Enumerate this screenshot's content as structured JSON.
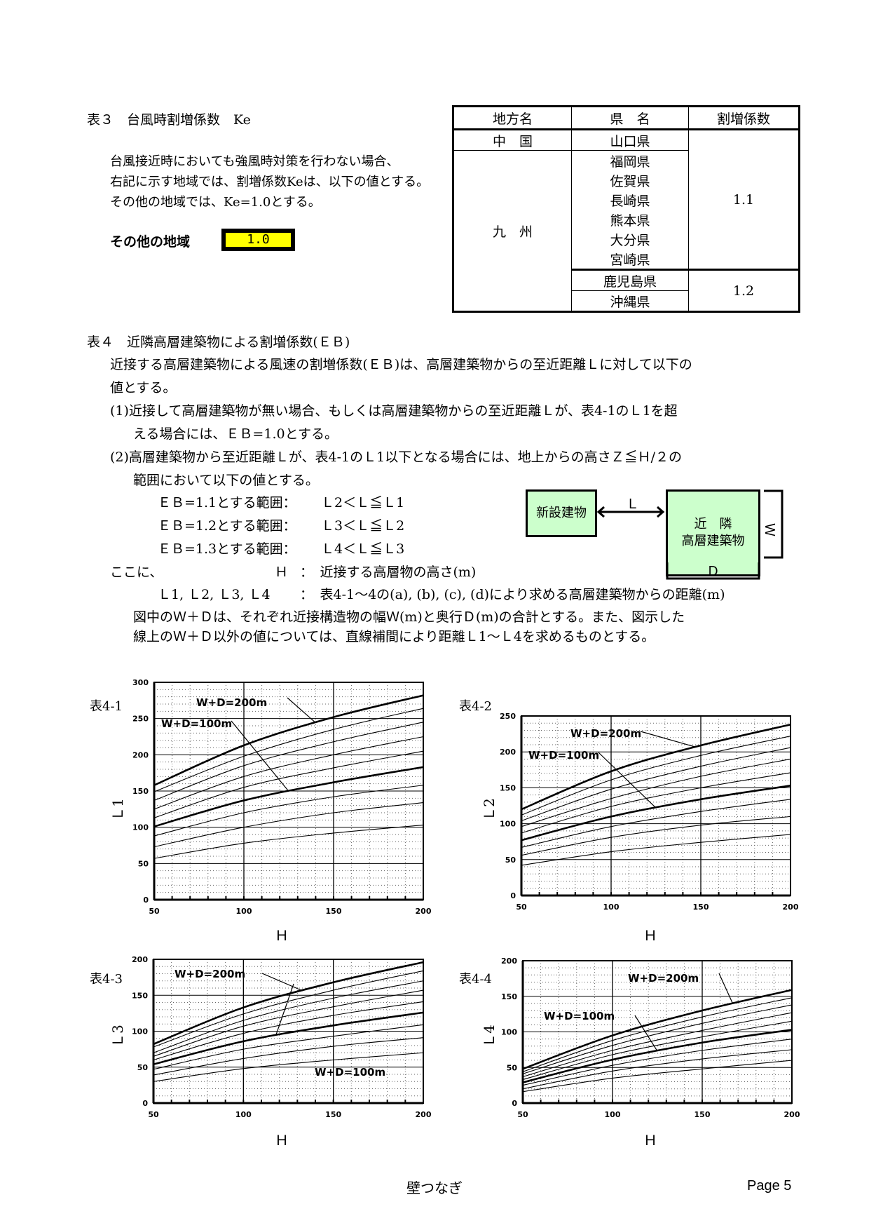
{
  "table3": {
    "title": "表３　台風時割増係数　Ke",
    "lines": [
      "台風接近時においても強風時対策を行わない場合、",
      "右記に示す地域では、割増係数Keは、以下の値とする。",
      "その他の地域では、Ke=1.0とする。"
    ],
    "other_label": "その他の地域",
    "other_value": "1.0",
    "highlight_color": "#ffff00",
    "headers": [
      "地方名",
      "県　名",
      "割増係数"
    ],
    "rows": [
      {
        "region": "中　国",
        "prefecture": "山口県"
      },
      {
        "region": "九　州",
        "prefecture": "福岡県"
      },
      {
        "prefecture": "佐賀県"
      },
      {
        "prefecture": "長崎県"
      },
      {
        "prefecture": "熊本県"
      },
      {
        "prefecture": "大分県"
      },
      {
        "prefecture": "宮崎県"
      },
      {
        "prefecture": "鹿児島県"
      },
      {
        "prefecture": "沖縄県"
      }
    ],
    "coef_a": "1.1",
    "coef_b": "1.2"
  },
  "table4": {
    "title": "表４　近隣高層建築物による割増係数(ＥＢ)",
    "p1": "近接する高層建築物による風速の割増係数(ＥＢ)は、高層建築物からの至近距離Ｌに対して以下の",
    "p1b": "値とする。",
    "c1": "(1)近接して高層建築物が無い場合、もしくは高層建築物からの至近距離Ｌが、表4-1のＬ1を超",
    "c1b": "える場合には、ＥＢ=1.0とする。",
    "c2": "(2)高層建築物から至近距離Ｌが、表4-1のＬ1以下となる場合には、地上からの高さＺ≦Ｈ/２の",
    "c2b": "範囲において以下の値とする。",
    "ranges": [
      {
        "label": "ＥＢ=1.1とする範囲：",
        "cond": "Ｌ2＜Ｌ≦Ｌ1"
      },
      {
        "label": "ＥＢ=1.2とする範囲：",
        "cond": "Ｌ3＜Ｌ≦Ｌ2"
      },
      {
        "label": "ＥＢ=1.3とする範囲：",
        "cond": "Ｌ4＜Ｌ≦Ｌ3"
      }
    ],
    "where": "ここに、",
    "h_sym": "Ｈ",
    "h_def": "：　近接する高層物の高さ(m)",
    "l_sym": "Ｌ1, Ｌ2, Ｌ3, Ｌ4",
    "l_def": "：　表4-1～4の(a), (b), (c), (d)により求める高層建築物からの距離(m)",
    "note1": "図中のＷ＋Ｄは、それぞれ近接構造物の幅Ｗ(m)と奥行Ｄ(m)の合計とする。また、図示した",
    "note2": "線上のＷ＋Ｄ以外の値については、直線補間により距離Ｌ1～Ｌ4を求めるものとする。"
  },
  "diagram": {
    "new_building": "新設建物",
    "neighbor_line1": "近　隣",
    "neighbor_line2": "高層建築物",
    "distance": "Ｌ",
    "width": "Ｗ",
    "depth": "Ｄ",
    "box_color": "#ccffcc"
  },
  "chart_data": [
    {
      "type": "line",
      "title": "表4-1",
      "xlabel": "Ｈ",
      "ylabel": "Ｌ1",
      "xlim": [
        50,
        200
      ],
      "ylim": [
        0,
        300
      ],
      "grid": true,
      "xticks": [
        50,
        100,
        150,
        200
      ],
      "yticks": [
        0,
        50,
        100,
        150,
        200,
        250,
        300
      ],
      "x": [
        50,
        100,
        150,
        200
      ],
      "series": [
        {
          "values": [
            158,
            213,
            252,
            282
          ]
        },
        {
          "values": [
            149,
            198,
            235,
            264
          ]
        },
        {
          "values": [
            137,
            185,
            218,
            245
          ]
        },
        {
          "values": [
            125,
            170,
            200,
            225
          ]
        },
        {
          "values": [
            113,
            155,
            182,
            205
          ]
        },
        {
          "values": [
            101,
            137,
            162,
            183
          ]
        },
        {
          "values": [
            88,
            120,
            142,
            158
          ]
        },
        {
          "values": [
            73,
            100,
            120,
            134
          ]
        },
        {
          "values": [
            57,
            78,
            92,
            103
          ]
        }
      ],
      "annotations": [
        "W+D=200m",
        "W+D=100m"
      ]
    },
    {
      "type": "line",
      "title": "表4-2",
      "xlabel": "Ｈ",
      "ylabel": "Ｌ2",
      "xlim": [
        50,
        200
      ],
      "ylim": [
        0,
        250
      ],
      "grid": true,
      "xticks": [
        50,
        100,
        150,
        200
      ],
      "yticks": [
        0,
        50,
        100,
        150,
        200,
        250
      ],
      "x": [
        50,
        100,
        150,
        200
      ],
      "series": [
        {
          "values": [
            120,
            173,
            209,
            238
          ]
        },
        {
          "values": [
            112,
            161,
            195,
            222
          ]
        },
        {
          "values": [
            104,
            148,
            180,
            206
          ]
        },
        {
          "values": [
            96,
            135,
            166,
            190
          ]
        },
        {
          "values": [
            87,
            124,
            150,
            171
          ]
        },
        {
          "values": [
            77,
            110,
            134,
            153
          ]
        },
        {
          "values": [
            67,
            96,
            117,
            134
          ]
        },
        {
          "values": [
            56,
            81,
            98,
            110
          ]
        },
        {
          "values": [
            42,
            61,
            74,
            85
          ]
        }
      ],
      "annotations": [
        "W+D=200m",
        "W+D=100m"
      ]
    },
    {
      "type": "line",
      "title": "表4-3",
      "xlabel": "Ｈ",
      "ylabel": "Ｌ3",
      "xlim": [
        50,
        200
      ],
      "ylim": [
        0,
        200
      ],
      "grid": true,
      "xticks": [
        50,
        100,
        150,
        200
      ],
      "yticks": [
        0,
        50,
        100,
        150,
        200
      ],
      "x": [
        50,
        100,
        150,
        200
      ],
      "series": [
        {
          "values": [
            82,
            133,
            168,
            196
          ]
        },
        {
          "values": [
            78,
            124,
            157,
            184
          ]
        },
        {
          "values": [
            70,
            115,
            146,
            170
          ]
        },
        {
          "values": [
            65,
            107,
            134,
            157
          ]
        },
        {
          "values": [
            60,
            97,
            122,
            141
          ]
        },
        {
          "values": [
            54,
            86,
            108,
            126
          ]
        },
        {
          "values": [
            47,
            75,
            93,
            109
          ]
        },
        {
          "values": [
            39,
            62,
            79,
            91
          ]
        },
        {
          "values": [
            30,
            48,
            60,
            70
          ]
        }
      ],
      "annotations": [
        "W+D=200m",
        "W+D=100m"
      ]
    },
    {
      "type": "line",
      "title": "表4-4",
      "xlabel": "Ｈ",
      "ylabel": "Ｌ4",
      "xlim": [
        50,
        200
      ],
      "ylim": [
        0,
        200
      ],
      "grid": true,
      "xticks": [
        50,
        100,
        150,
        200
      ],
      "yticks": [
        0,
        50,
        100,
        150,
        200
      ],
      "x": [
        50,
        100,
        150,
        200
      ],
      "series": [
        {
          "values": [
            48,
            95,
            130,
            159
          ]
        },
        {
          "values": [
            44,
            88,
            121,
            148
          ]
        },
        {
          "values": [
            41,
            81,
            112,
            138
          ]
        },
        {
          "values": [
            37,
            74,
            102,
            127
          ]
        },
        {
          "values": [
            33,
            68,
            93,
            115
          ]
        },
        {
          "values": [
            29,
            61,
            85,
            103
          ]
        },
        {
          "values": [
            25,
            53,
            74,
            90
          ]
        },
        {
          "values": [
            20,
            45,
            62,
            75
          ]
        },
        {
          "values": [
            16,
            35,
            48,
            60
          ]
        }
      ],
      "annotations": [
        "W+D=200m",
        "W+D=100m"
      ]
    }
  ],
  "footer": {
    "center": "壁つなぎ",
    "page": "Page 5"
  }
}
